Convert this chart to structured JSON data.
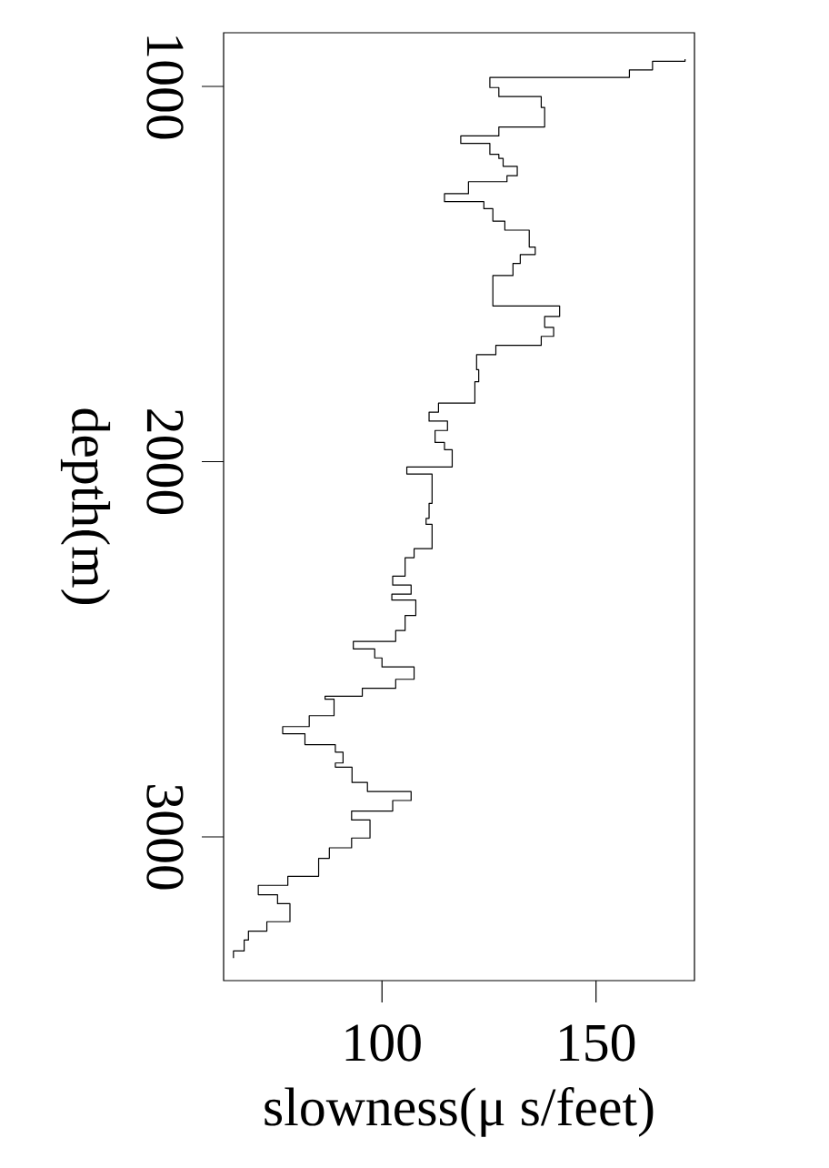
{
  "chart_data": {
    "type": "step",
    "xlabel": "slowness(μ s/feet)",
    "ylabel": "depth(m)",
    "xlim": [
      63,
      173
    ],
    "ylim": [
      3383,
      857
    ],
    "xticks": [
      100,
      150
    ],
    "yticks": [
      1000,
      2000,
      3000
    ],
    "grid": false,
    "series": [
      {
        "color": "#000000",
        "x": [
          170.8,
          163.2,
          157.8,
          125.2,
          127.3,
          137.2,
          138.0,
          127.3,
          118.4,
          125.2,
          127.3,
          128.3,
          131.6,
          129.2,
          120.2,
          114.6,
          123.8,
          125.9,
          128.7,
          134.4,
          135.8,
          132.3,
          130.6,
          125.9,
          141.5,
          138.0,
          140.1,
          137.2,
          126.6,
          122.1,
          122.6,
          121.7,
          113.2,
          111.0,
          115.3,
          112.4,
          114.6,
          116.4,
          105.8,
          111.7,
          111.0,
          110.3,
          111.7,
          107.5,
          105.4,
          102.5,
          106.8,
          102.3,
          107.9,
          105.4,
          103.2,
          93.3,
          98.3,
          100.0,
          107.5,
          103.2,
          95.4,
          86.7,
          88.8,
          83.0,
          76.8,
          82.0,
          89.1,
          90.9,
          89.1,
          93.0,
          96.6,
          106.8,
          102.5,
          92.9,
          97.2,
          92.9,
          87.7,
          85.2,
          78.0,
          71.1,
          75.6,
          78.5,
          73.1,
          68.8,
          67.8,
          65.3,
          65.3
        ],
        "values": [
          927,
          933,
          956,
          976,
          1003,
          1027,
          1056,
          1108,
          1132,
          1152,
          1181,
          1192,
          1213,
          1238,
          1254,
          1286,
          1307,
          1326,
          1359,
          1383,
          1428,
          1448,
          1472,
          1504,
          1585,
          1613,
          1642,
          1666,
          1690,
          1715,
          1755,
          1787,
          1844,
          1868,
          1892,
          1917,
          1949,
          1968,
          2014,
          2033,
          2111,
          2151,
          2167,
          2232,
          2256,
          2305,
          2329,
          2353,
          2369,
          2410,
          2450,
          2479,
          2499,
          2523,
          2547,
          2580,
          2604,
          2625,
          2633,
          2677,
          2706,
          2725,
          2754,
          2774,
          2803,
          2814,
          2855,
          2879,
          2903,
          2931,
          2955,
          3003,
          3029,
          3057,
          3105,
          3129,
          3154,
          3178,
          3226,
          3251,
          3275,
          3304,
          3323
        ]
      }
    ]
  }
}
